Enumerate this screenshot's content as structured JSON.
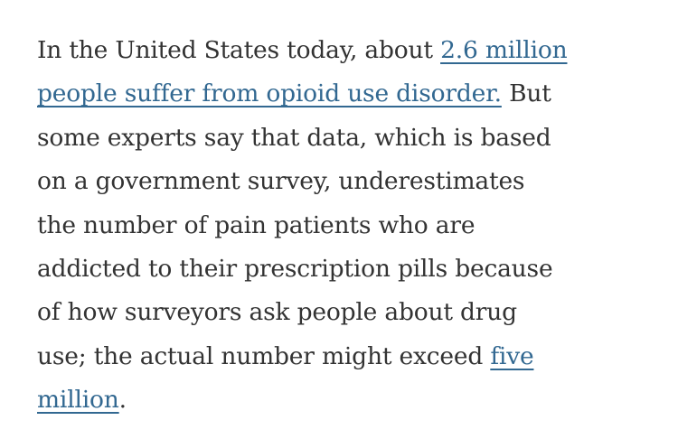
{
  "article": {
    "lines": [
      [
        {
          "text": "In the United States today, about "
        },
        {
          "text": "2.6 million",
          "link": true
        }
      ],
      [
        {
          "text": "people suffer from opioid use disorder.",
          "link": true
        },
        {
          "text": " But"
        }
      ],
      [
        {
          "text": "some experts say that data, which is based"
        }
      ],
      [
        {
          "text": "on a government survey, underestimates"
        }
      ],
      [
        {
          "text": "the number of pain patients who are"
        }
      ],
      [
        {
          "text": "addicted to their prescription pills because"
        }
      ],
      [
        {
          "text": "of how surveyors ask people about drug"
        }
      ],
      [
        {
          "text": "use; the actual number might exceed "
        },
        {
          "text": "five",
          "link": true
        }
      ],
      [
        {
          "text": "million",
          "link": true
        },
        {
          "text": "."
        }
      ]
    ],
    "colors": {
      "text": "#333333",
      "link": "#326891"
    }
  }
}
